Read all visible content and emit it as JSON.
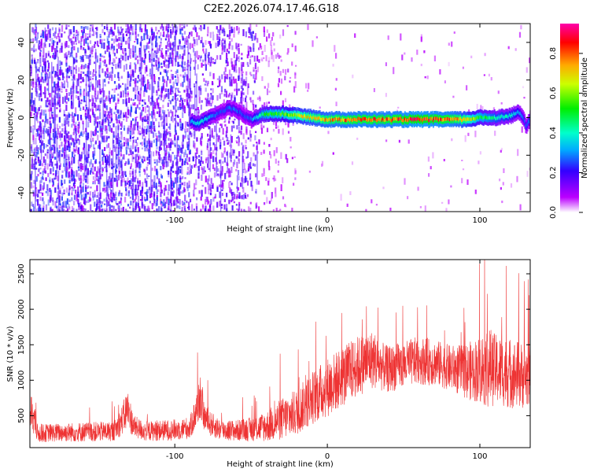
{
  "title": "C2E2.2026.074.17.46.G18",
  "chart_data": [
    {
      "type": "heatmap",
      "xlabel": "Height of straight line (km)",
      "ylabel": "Frequency (Hz)",
      "xlim": [
        -195,
        133
      ],
      "ylim": [
        -50,
        50
      ],
      "xticks": [
        -100,
        0,
        100
      ],
      "yticks": [
        -40,
        -20,
        0,
        20,
        40
      ],
      "colorbar": {
        "label": "Normalized spectral amplitude",
        "range": [
          0,
          0.95
        ],
        "ticks": [
          "0.0",
          "0.2",
          "0.4",
          "0.6",
          "0.8"
        ],
        "tick_values": [
          0,
          0.2,
          0.4,
          0.6,
          0.8
        ]
      },
      "noise_regions": [
        {
          "x": [
            -195,
            -90
          ],
          "density": 0.45,
          "amplitude": 0.18
        },
        {
          "x": [
            -90,
            -47
          ],
          "density": 0.3,
          "amplitude": 0.15
        },
        {
          "x": [
            -47,
            -20
          ],
          "density": 0.12,
          "amplitude": 0.08
        },
        {
          "x": [
            -20,
            133
          ],
          "density": 0.015,
          "amplitude": 0.06
        }
      ],
      "signal_track": {
        "x": [
          -90,
          -85,
          -80,
          -75,
          -70,
          -65,
          -60,
          -55,
          -50,
          -45,
          -40,
          -30,
          -20,
          -10,
          0,
          20,
          40,
          60,
          80,
          90,
          100,
          110,
          120,
          125,
          128,
          130,
          133
        ],
        "freq": [
          -2,
          -3,
          -1,
          1,
          3,
          5,
          4,
          1,
          -1,
          1,
          2,
          2,
          1,
          0,
          -1,
          -1,
          -1,
          -1,
          -1,
          -1,
          0,
          0,
          1,
          3,
          0,
          -5,
          0
        ],
        "amplitude": [
          0.35,
          0.4,
          0.38,
          0.3,
          0.25,
          0.3,
          0.28,
          0.25,
          0.3,
          0.45,
          0.55,
          0.6,
          0.7,
          0.75,
          0.8,
          0.85,
          0.85,
          0.9,
          0.85,
          0.75,
          0.55,
          0.45,
          0.4,
          0.35,
          0.3,
          0.3,
          0.3
        ]
      }
    },
    {
      "type": "line",
      "xlabel": "Height of straight line (km)",
      "ylabel": "SNR (10 * v/v)",
      "xlim": [
        -195,
        133
      ],
      "ylim": [
        50,
        2700
      ],
      "xticks": [
        -100,
        0,
        100
      ],
      "yticks": [
        500,
        1000,
        1500,
        2000,
        2500
      ],
      "color": "#ee3333",
      "samples": 2600,
      "envelope": {
        "x": [
          -195,
          -194,
          -190,
          -180,
          -160,
          -140,
          -135,
          -131,
          -127,
          -120,
          -100,
          -90,
          -86,
          -83,
          -81,
          -78,
          -70,
          -60,
          -50,
          -40,
          -30,
          -20,
          -10,
          0,
          10,
          20,
          30,
          35,
          40,
          50,
          60,
          70,
          80,
          90,
          100,
          105,
          110,
          120,
          133
        ],
        "mean": [
          300,
          600,
          250,
          260,
          270,
          280,
          420,
          600,
          350,
          280,
          300,
          330,
          560,
          800,
          500,
          400,
          300,
          290,
          310,
          350,
          450,
          550,
          750,
          900,
          1050,
          1200,
          1300,
          1200,
          1150,
          1220,
          1280,
          1250,
          1180,
          1120,
          1150,
          1200,
          1150,
          1100,
          1050
        ],
        "spread": [
          150,
          300,
          130,
          130,
          140,
          140,
          200,
          300,
          160,
          140,
          150,
          160,
          250,
          350,
          200,
          180,
          150,
          150,
          170,
          220,
          300,
          330,
          380,
          420,
          430,
          430,
          420,
          350,
          330,
          330,
          340,
          330,
          320,
          380,
          480,
          600,
          500,
          500,
          450
        ]
      }
    }
  ]
}
